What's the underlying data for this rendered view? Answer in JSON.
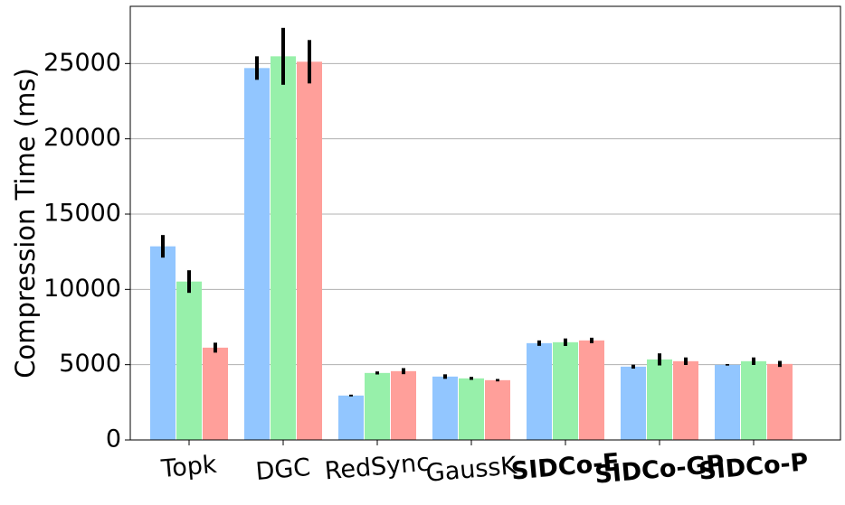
{
  "chart_data": {
    "type": "bar",
    "y_label": "Compression Time (ms)",
    "categories": [
      "Topk",
      "DGC",
      "RedSync",
      "GaussK",
      "SIDCo-E",
      "SIDCo-GP",
      "SIDCo-P"
    ],
    "category_colors": [
      "#000000",
      "#000000",
      "#000000",
      "#000000",
      "#ff0000",
      "#c000c0",
      "#c0c000"
    ],
    "category_bold": [
      false,
      false,
      false,
      false,
      true,
      true,
      true
    ],
    "series": [
      {
        "color": "#92c6ff",
        "values": [
          12860,
          24700,
          2950,
          4210,
          6430,
          4870,
          4990
        ],
        "errors": [
          750,
          780,
          60,
          150,
          180,
          130,
          50
        ]
      },
      {
        "color": "#97f0aa",
        "values": [
          10520,
          25480,
          4450,
          4090,
          6490,
          5350,
          5230
        ],
        "errors": [
          750,
          1890,
          100,
          100,
          250,
          400,
          250
        ]
      },
      {
        "color": "#ff9f9a",
        "values": [
          6130,
          25120,
          4570,
          3970,
          6610,
          5230,
          5050
        ],
        "errors": [
          330,
          1440,
          200,
          80,
          180,
          250,
          200
        ]
      }
    ],
    "ylim": [
      0,
      28800
    ],
    "yticks": [
      0,
      5000,
      10000,
      15000,
      20000,
      25000
    ],
    "grid": true
  }
}
